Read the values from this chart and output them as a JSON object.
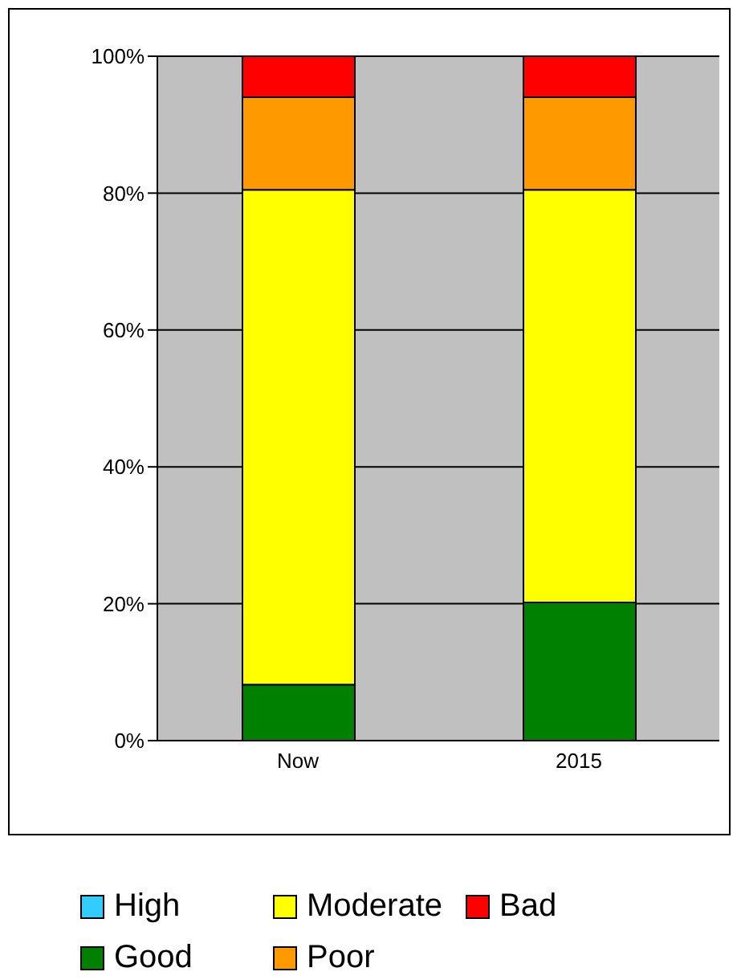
{
  "chart_data": {
    "type": "bar",
    "stacked": true,
    "categories": [
      "Now",
      "2015"
    ],
    "series": [
      {
        "name": "High",
        "color": "#33ccff",
        "values": [
          0,
          0
        ]
      },
      {
        "name": "Good",
        "color": "#008000",
        "values": [
          8.2,
          20.2
        ]
      },
      {
        "name": "Moderate",
        "color": "#ffff00",
        "values": [
          72.3,
          60.3
        ]
      },
      {
        "name": "Poor",
        "color": "#ff9900",
        "values": [
          13.5,
          13.5
        ]
      },
      {
        "name": "Bad",
        "color": "#ff0000",
        "values": [
          6,
          6
        ]
      }
    ],
    "ylim": [
      0,
      100
    ],
    "yticks": [
      {
        "value": 0,
        "label": "0%"
      },
      {
        "value": 20,
        "label": "20%"
      },
      {
        "value": 40,
        "label": "40%"
      },
      {
        "value": 60,
        "label": "60%"
      },
      {
        "value": 80,
        "label": "80%"
      },
      {
        "value": 100,
        "label": "100%"
      }
    ],
    "grid": "y",
    "legend": "bottom"
  }
}
